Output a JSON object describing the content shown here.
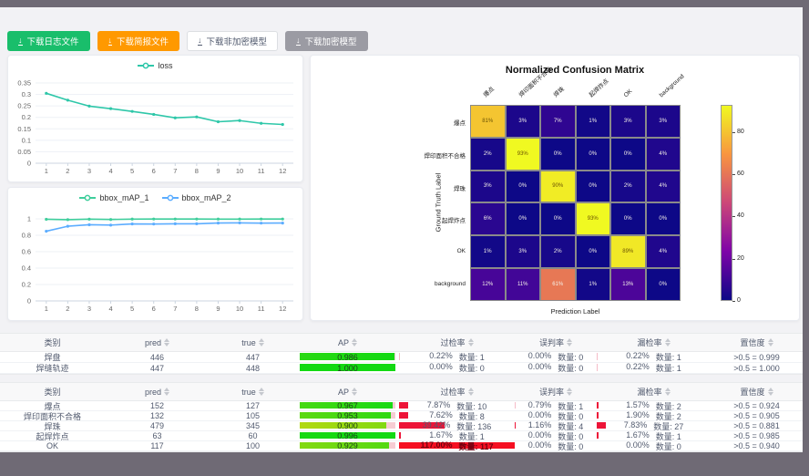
{
  "colors": {
    "frame": "#6f6a75",
    "page_bg": "#f2f2f5",
    "ap_rest": "#f6ccd3",
    "rate_bar": "#ed1438",
    "rate_bar_light": "#f5bcc8"
  },
  "toolbar": {
    "buttons": [
      {
        "key": "download-log-file",
        "label": "下载日志文件",
        "style": "green"
      },
      {
        "key": "download-report-file",
        "label": "下载简报文件",
        "style": "orange"
      },
      {
        "key": "download-unencrypted-model",
        "label": "下载非加密模型",
        "style": "white"
      },
      {
        "key": "download-encrypted-model",
        "label": "下载加密模型",
        "style": "gray"
      }
    ]
  },
  "chart_data": [
    {
      "type": "line",
      "title": "loss",
      "x": [
        1,
        2,
        3,
        4,
        5,
        6,
        7,
        8,
        9,
        10,
        11,
        12
      ],
      "ylim": [
        0,
        0.35
      ],
      "yticks": [
        0,
        0.05,
        0.1,
        0.15,
        0.2,
        0.25,
        0.3,
        0.35
      ],
      "legend_position": "top",
      "grid": true,
      "series": [
        {
          "name": "loss",
          "color": "#2ec7a9",
          "values": [
            0.305,
            0.275,
            0.249,
            0.238,
            0.226,
            0.213,
            0.198,
            0.202,
            0.181,
            0.186,
            0.174,
            0.169
          ]
        }
      ]
    },
    {
      "type": "line",
      "title": "bbox_mAP",
      "x": [
        1,
        2,
        3,
        4,
        5,
        6,
        7,
        8,
        9,
        10,
        11,
        12
      ],
      "ylim": [
        0,
        1
      ],
      "yticks": [
        0,
        0.2,
        0.4,
        0.6,
        0.8,
        1
      ],
      "legend_position": "top",
      "grid": true,
      "series": [
        {
          "name": "bbox_mAP_1",
          "color": "#3fce9c",
          "values": [
            0.995,
            0.99,
            0.996,
            0.992,
            0.997,
            0.998,
            0.998,
            0.998,
            0.997,
            0.997,
            0.998,
            0.998
          ]
        },
        {
          "name": "bbox_mAP_2",
          "color": "#5cadff",
          "values": [
            0.849,
            0.91,
            0.928,
            0.924,
            0.938,
            0.937,
            0.94,
            0.94,
            0.949,
            0.951,
            0.948,
            0.949
          ]
        }
      ]
    },
    {
      "type": "heatmap",
      "title": "Normalized Confusion Matrix",
      "xlabel": "Prediction Label",
      "ylabel": "Ground Truth Label",
      "labels": [
        "爆点",
        "焊印面积不合格",
        "焊珠",
        "起焊炸点",
        "OK",
        "background"
      ],
      "values": [
        [
          81,
          3,
          7,
          1,
          3,
          3
        ],
        [
          2,
          93,
          0,
          0,
          0,
          4
        ],
        [
          3,
          0,
          90,
          0,
          2,
          4
        ],
        [
          6,
          0,
          0,
          93,
          0,
          0
        ],
        [
          1,
          3,
          2,
          0,
          89,
          4
        ],
        [
          12,
          11,
          61,
          1,
          13,
          0
        ]
      ],
      "vmax": 93,
      "colorbar_ticks": [
        0,
        20,
        40,
        60,
        80
      ],
      "colormap": "plasma"
    }
  ],
  "tables": {
    "headers": [
      {
        "label": "类别",
        "sortable": false
      },
      {
        "label": "pred",
        "sortable": true
      },
      {
        "label": "true",
        "sortable": true
      },
      {
        "label": "AP",
        "sortable": true
      },
      {
        "label": "过检率",
        "sortable": true
      },
      {
        "label": "误判率",
        "sortable": true
      },
      {
        "label": "漏检率",
        "sortable": true
      },
      {
        "label": "置信度",
        "sortable": true
      }
    ],
    "groups": [
      {
        "rows": [
          {
            "name": "焊盘",
            "pred": "446",
            "true": "447",
            "ap": "0.986",
            "ap_val": 0.986,
            "over": {
              "pct": "0.22%",
              "count": "数量: 1",
              "num": 0.22
            },
            "mis": {
              "pct": "0.00%",
              "count": "数量: 0",
              "num": 0
            },
            "miss": {
              "pct": "0.22%",
              "count": "数量: 1",
              "num": 0.22
            },
            "conf": ">0.5 = 0.999"
          },
          {
            "name": "焊缝轨迹",
            "pred": "447",
            "true": "448",
            "ap": "1.000",
            "ap_val": 1.0,
            "over": {
              "pct": "0.00%",
              "count": "数量: 0",
              "num": 0
            },
            "mis": {
              "pct": "0.00%",
              "count": "数量: 0",
              "num": 0
            },
            "miss": {
              "pct": "0.22%",
              "count": "数量: 1",
              "num": 0.22
            },
            "conf": ">0.5 = 1.000"
          }
        ]
      },
      {
        "rows": [
          {
            "name": "爆点",
            "pred": "152",
            "true": "127",
            "ap": "0.967",
            "ap_val": 0.967,
            "over": {
              "pct": "7.87%",
              "count": "数量: 10",
              "num": 7.87
            },
            "mis": {
              "pct": "0.79%",
              "count": "数量: 1",
              "num": 0.79
            },
            "miss": {
              "pct": "1.57%",
              "count": "数量: 2",
              "num": 1.57
            },
            "conf": ">0.5 = 0.924"
          },
          {
            "name": "焊印面积不合格",
            "pred": "132",
            "true": "105",
            "ap": "0.953",
            "ap_val": 0.953,
            "over": {
              "pct": "7.62%",
              "count": "数量: 8",
              "num": 7.62
            },
            "mis": {
              "pct": "0.00%",
              "count": "数量: 0",
              "num": 0
            },
            "miss": {
              "pct": "1.90%",
              "count": "数量: 2",
              "num": 1.9
            },
            "conf": ">0.5 = 0.905"
          },
          {
            "name": "焊珠",
            "pred": "479",
            "true": "345",
            "ap": "0.900",
            "ap_val": 0.9,
            "over": {
              "pct": "39.42%",
              "count": "数量: 136",
              "num": 39.42
            },
            "mis": {
              "pct": "1.16%",
              "count": "数量: 4",
              "num": 1.16
            },
            "miss": {
              "pct": "7.83%",
              "count": "数量: 27",
              "num": 7.83
            },
            "conf": ">0.5 = 0.881"
          },
          {
            "name": "起焊炸点",
            "pred": "63",
            "true": "60",
            "ap": "0.996",
            "ap_val": 0.996,
            "over": {
              "pct": "1.67%",
              "count": "数量: 1",
              "num": 1.67
            },
            "mis": {
              "pct": "0.00%",
              "count": "数量: 0",
              "num": 0
            },
            "miss": {
              "pct": "1.67%",
              "count": "数量: 1",
              "num": 1.67
            },
            "conf": ">0.5 = 0.985"
          },
          {
            "name": "OK",
            "pred": "117",
            "true": "100",
            "ap": "0.929",
            "ap_val": 0.929,
            "over": {
              "pct": "117.00%",
              "count": "数量: 117",
              "num": 117
            },
            "mis": {
              "pct": "0.00%",
              "count": "数量: 0",
              "num": 0
            },
            "miss": {
              "pct": "0.00%",
              "count": "数量: 0",
              "num": 0
            },
            "conf": ">0.5 = 0.940"
          }
        ]
      }
    ]
  }
}
